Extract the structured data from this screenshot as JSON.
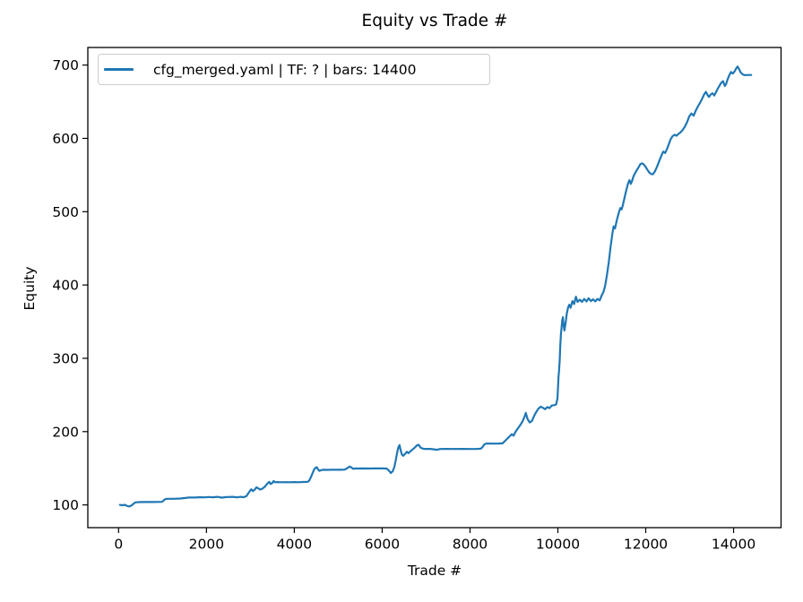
{
  "figure": {
    "background": "#ffffff"
  },
  "chart_data": {
    "type": "line",
    "title": "Equity vs Trade #",
    "xlabel": "Trade #",
    "ylabel": "Equity",
    "grid": false,
    "legend_position": "upper left",
    "x_ticks": [
      0,
      2000,
      4000,
      6000,
      8000,
      10000,
      12000,
      14000
    ],
    "y_ticks": [
      100,
      200,
      300,
      400,
      500,
      600,
      700
    ],
    "xlim": [
      -700,
      15080
    ],
    "ylim": [
      69,
      724
    ],
    "line_color": "#1f77b4",
    "axis_color": "#000000",
    "legend_border_color": "#cccccc",
    "series": [
      {
        "name": "cfg_merged.yaml | TF: ? | bars: 14400",
        "color": "#1f77b4",
        "points": [
          [
            30,
            100
          ],
          [
            80,
            99.6
          ],
          [
            140,
            100.2
          ],
          [
            200,
            98.5
          ],
          [
            250,
            98
          ],
          [
            300,
            99.5
          ],
          [
            340,
            101.5
          ],
          [
            380,
            103.5
          ],
          [
            450,
            103.8
          ],
          [
            600,
            103.9
          ],
          [
            800,
            104
          ],
          [
            990,
            104.2
          ],
          [
            1020,
            105.8
          ],
          [
            1050,
            107.5
          ],
          [
            1090,
            108.3
          ],
          [
            1250,
            108.4
          ],
          [
            1400,
            108.7
          ],
          [
            1500,
            109.3
          ],
          [
            1600,
            110
          ],
          [
            1750,
            110.1
          ],
          [
            1850,
            110.6
          ],
          [
            1950,
            110.3
          ],
          [
            2050,
            110.8
          ],
          [
            2150,
            110.4
          ],
          [
            2250,
            111
          ],
          [
            2350,
            109.9
          ],
          [
            2450,
            110.7
          ],
          [
            2600,
            111
          ],
          [
            2700,
            110.3
          ],
          [
            2780,
            111
          ],
          [
            2850,
            110.6
          ],
          [
            2910,
            112
          ],
          [
            2950,
            115.5
          ],
          [
            2990,
            119
          ],
          [
            3020,
            121.3
          ],
          [
            3060,
            118.8
          ],
          [
            3100,
            121
          ],
          [
            3140,
            124
          ],
          [
            3180,
            122.5
          ],
          [
            3220,
            121
          ],
          [
            3270,
            122
          ],
          [
            3320,
            124.5
          ],
          [
            3360,
            127
          ],
          [
            3400,
            130
          ],
          [
            3430,
            131.5
          ],
          [
            3460,
            128.5
          ],
          [
            3500,
            130
          ],
          [
            3530,
            132.5
          ],
          [
            3560,
            131
          ],
          [
            3620,
            131.2
          ],
          [
            3700,
            131
          ],
          [
            3800,
            131.1
          ],
          [
            3900,
            131
          ],
          [
            4000,
            131.2
          ],
          [
            4100,
            131
          ],
          [
            4200,
            131.3
          ],
          [
            4300,
            131.5
          ],
          [
            4340,
            133
          ],
          [
            4380,
            138
          ],
          [
            4420,
            144
          ],
          [
            4450,
            148
          ],
          [
            4480,
            150.5
          ],
          [
            4510,
            151.5
          ],
          [
            4540,
            148.5
          ],
          [
            4570,
            146.5
          ],
          [
            4610,
            147.5
          ],
          [
            4650,
            148
          ],
          [
            4750,
            147.8
          ],
          [
            4850,
            148
          ],
          [
            4950,
            147.9
          ],
          [
            5050,
            148
          ],
          [
            5150,
            148.2
          ],
          [
            5220,
            150.8
          ],
          [
            5260,
            152.3
          ],
          [
            5300,
            151
          ],
          [
            5340,
            149.3
          ],
          [
            5390,
            149.8
          ],
          [
            5450,
            149.6
          ],
          [
            5550,
            149.8
          ],
          [
            5700,
            149.7
          ],
          [
            5850,
            149.9
          ],
          [
            6000,
            149.8
          ],
          [
            6100,
            149.6
          ],
          [
            6150,
            147
          ],
          [
            6200,
            143.5
          ],
          [
            6240,
            146
          ],
          [
            6280,
            152
          ],
          [
            6310,
            161
          ],
          [
            6340,
            171
          ],
          [
            6370,
            179
          ],
          [
            6395,
            181.5
          ],
          [
            6420,
            175
          ],
          [
            6450,
            168.5
          ],
          [
            6480,
            167
          ],
          [
            6520,
            169.5
          ],
          [
            6560,
            172.5
          ],
          [
            6600,
            170.5
          ],
          [
            6640,
            173
          ],
          [
            6690,
            175.5
          ],
          [
            6740,
            178
          ],
          [
            6790,
            181
          ],
          [
            6830,
            182
          ],
          [
            6870,
            178.5
          ],
          [
            6910,
            177
          ],
          [
            6960,
            176.4
          ],
          [
            7100,
            176.4
          ],
          [
            7180,
            175.8
          ],
          [
            7250,
            175.2
          ],
          [
            7320,
            176.3
          ],
          [
            7450,
            176.4
          ],
          [
            7600,
            176.3
          ],
          [
            7800,
            176.4
          ],
          [
            8000,
            176.3
          ],
          [
            8150,
            176.4
          ],
          [
            8250,
            176.8
          ],
          [
            8290,
            179.5
          ],
          [
            8330,
            182.8
          ],
          [
            8380,
            183.8
          ],
          [
            8500,
            183.6
          ],
          [
            8650,
            183.8
          ],
          [
            8740,
            184
          ],
          [
            8800,
            187.5
          ],
          [
            8850,
            190.5
          ],
          [
            8900,
            193.5
          ],
          [
            8950,
            196.5
          ],
          [
            8990,
            194.5
          ],
          [
            9040,
            200
          ],
          [
            9090,
            204.5
          ],
          [
            9140,
            208.5
          ],
          [
            9190,
            213.5
          ],
          [
            9240,
            220
          ],
          [
            9270,
            225.5
          ],
          [
            9310,
            217
          ],
          [
            9360,
            212.5
          ],
          [
            9410,
            214.5
          ],
          [
            9460,
            221.5
          ],
          [
            9510,
            227
          ],
          [
            9560,
            231.5
          ],
          [
            9610,
            234
          ],
          [
            9660,
            232.5
          ],
          [
            9710,
            230.5
          ],
          [
            9760,
            233.5
          ],
          [
            9810,
            232
          ],
          [
            9860,
            235.5
          ],
          [
            9910,
            236
          ],
          [
            9960,
            237
          ],
          [
            9990,
            245
          ],
          [
            10005,
            262
          ],
          [
            10015,
            275
          ],
          [
            10025,
            281
          ],
          [
            10040,
            297
          ],
          [
            10055,
            318
          ],
          [
            10070,
            333
          ],
          [
            10085,
            343
          ],
          [
            10100,
            352
          ],
          [
            10115,
            356
          ],
          [
            10130,
            345
          ],
          [
            10150,
            338
          ],
          [
            10175,
            348
          ],
          [
            10200,
            360
          ],
          [
            10230,
            369
          ],
          [
            10260,
            373
          ],
          [
            10290,
            369
          ],
          [
            10330,
            378
          ],
          [
            10370,
            374
          ],
          [
            10410,
            384
          ],
          [
            10450,
            377
          ],
          [
            10500,
            380
          ],
          [
            10550,
            377
          ],
          [
            10600,
            381
          ],
          [
            10650,
            377.5
          ],
          [
            10700,
            382
          ],
          [
            10750,
            378
          ],
          [
            10800,
            380.5
          ],
          [
            10850,
            377.5
          ],
          [
            10900,
            381
          ],
          [
            10950,
            379
          ],
          [
            11000,
            386
          ],
          [
            11040,
            391
          ],
          [
            11080,
            400
          ],
          [
            11120,
            415
          ],
          [
            11160,
            432
          ],
          [
            11200,
            452
          ],
          [
            11240,
            470
          ],
          [
            11270,
            480
          ],
          [
            11300,
            477
          ],
          [
            11340,
            488
          ],
          [
            11380,
            497
          ],
          [
            11420,
            505
          ],
          [
            11450,
            503
          ],
          [
            11480,
            509
          ],
          [
            11510,
            517
          ],
          [
            11540,
            525
          ],
          [
            11570,
            532
          ],
          [
            11600,
            539
          ],
          [
            11630,
            543
          ],
          [
            11660,
            538
          ],
          [
            11690,
            542
          ],
          [
            11720,
            548
          ],
          [
            11760,
            553
          ],
          [
            11800,
            557
          ],
          [
            11840,
            561
          ],
          [
            11880,
            565
          ],
          [
            11920,
            566
          ],
          [
            11960,
            564
          ],
          [
            12000,
            561
          ],
          [
            12040,
            557
          ],
          [
            12080,
            553.5
          ],
          [
            12120,
            551.5
          ],
          [
            12160,
            551
          ],
          [
            12200,
            554
          ],
          [
            12240,
            559
          ],
          [
            12280,
            565
          ],
          [
            12320,
            571
          ],
          [
            12360,
            577
          ],
          [
            12400,
            582
          ],
          [
            12440,
            580
          ],
          [
            12480,
            585
          ],
          [
            12520,
            591
          ],
          [
            12560,
            598
          ],
          [
            12610,
            603
          ],
          [
            12660,
            605
          ],
          [
            12700,
            603.5
          ],
          [
            12740,
            606
          ],
          [
            12790,
            608
          ],
          [
            12840,
            611.5
          ],
          [
            12890,
            616
          ],
          [
            12940,
            622
          ],
          [
            12990,
            630
          ],
          [
            13040,
            634
          ],
          [
            13090,
            631
          ],
          [
            13140,
            638
          ],
          [
            13190,
            644
          ],
          [
            13240,
            649
          ],
          [
            13290,
            655
          ],
          [
            13330,
            660
          ],
          [
            13370,
            663.5
          ],
          [
            13410,
            659
          ],
          [
            13440,
            656.5
          ],
          [
            13480,
            660
          ],
          [
            13520,
            661.5
          ],
          [
            13560,
            658.5
          ],
          [
            13600,
            663
          ],
          [
            13640,
            668
          ],
          [
            13680,
            672
          ],
          [
            13720,
            676
          ],
          [
            13760,
            678
          ],
          [
            13800,
            671.5
          ],
          [
            13830,
            674
          ],
          [
            13860,
            680
          ],
          [
            13900,
            686
          ],
          [
            13940,
            690.5
          ],
          [
            13980,
            688.5
          ],
          [
            14020,
            691
          ],
          [
            14060,
            695.5
          ],
          [
            14090,
            698
          ],
          [
            14130,
            694
          ],
          [
            14160,
            690
          ],
          [
            14200,
            687.5
          ],
          [
            14250,
            686.3
          ],
          [
            14320,
            686.5
          ],
          [
            14400,
            686.5
          ]
        ]
      }
    ]
  }
}
